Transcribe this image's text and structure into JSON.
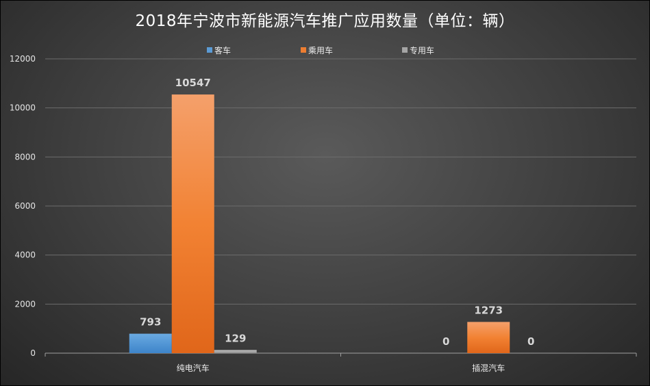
{
  "chart_data": {
    "type": "bar",
    "title": "2018年宁波市新能源汽车推广应用数量（单位：辆）",
    "categories": [
      "纯电汽车",
      "插混汽车"
    ],
    "series": [
      {
        "name": "客车",
        "values": [
          793,
          0
        ]
      },
      {
        "name": "乘用车",
        "values": [
          10547,
          1273
        ]
      },
      {
        "name": "专用车",
        "values": [
          129,
          0
        ]
      }
    ],
    "ylim": [
      0,
      12000
    ],
    "yticks": [
      0,
      2000,
      4000,
      6000,
      8000,
      10000,
      12000
    ],
    "grid": true,
    "legend_position": "top",
    "colors": [
      "#5b9bd5",
      "#ed7d31",
      "#a5a5a5"
    ]
  }
}
